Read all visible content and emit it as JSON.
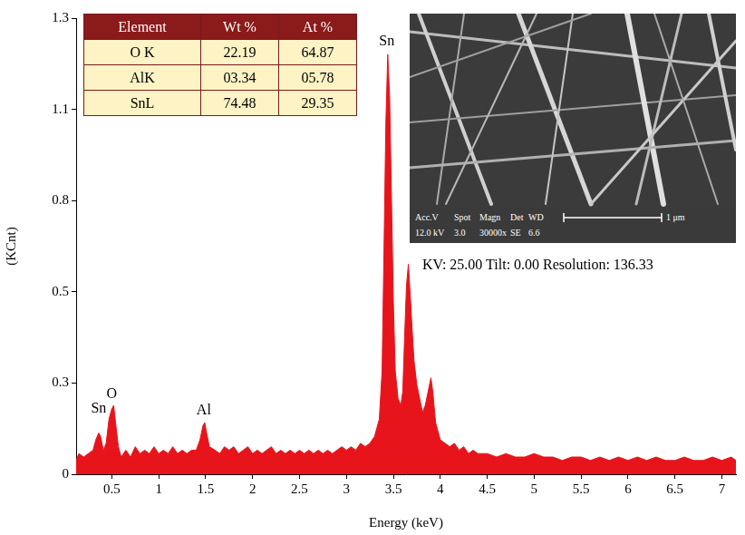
{
  "chart_data": {
    "type": "area",
    "x_label": "Energy (keV)",
    "y_label": "(KCnt)",
    "color": "#e8141b",
    "grid": false,
    "xlim": [
      0.12,
      7.15
    ],
    "xticks": [
      0.5,
      1,
      1.5,
      2,
      2.5,
      3,
      3.5,
      4,
      4.5,
      5,
      5.5,
      6,
      6.5,
      7
    ],
    "ylim": [
      0,
      1.325
    ],
    "yticks": [
      0,
      {
        "value": 0.265,
        "label": "0.3"
      },
      {
        "value": 0.53,
        "label": "0.5"
      },
      {
        "value": 0.795,
        "label": "0.8"
      },
      {
        "value": 1.06,
        "label": "1.1"
      },
      {
        "value": 1.325,
        "label": "1.3"
      }
    ],
    "x": [
      0.12,
      0.15,
      0.2,
      0.25,
      0.3,
      0.33,
      0.36,
      0.38,
      0.41,
      0.44,
      0.47,
      0.5,
      0.52,
      0.54,
      0.57,
      0.6,
      0.65,
      0.7,
      0.75,
      0.8,
      0.85,
      0.9,
      0.95,
      1.0,
      1.05,
      1.1,
      1.15,
      1.2,
      1.25,
      1.3,
      1.35,
      1.4,
      1.44,
      1.47,
      1.49,
      1.51,
      1.54,
      1.6,
      1.65,
      1.7,
      1.75,
      1.8,
      1.85,
      1.9,
      1.95,
      2.0,
      2.05,
      2.1,
      2.15,
      2.2,
      2.25,
      2.3,
      2.35,
      2.4,
      2.45,
      2.5,
      2.55,
      2.6,
      2.65,
      2.7,
      2.75,
      2.8,
      2.85,
      2.9,
      2.95,
      3.0,
      3.05,
      3.1,
      3.15,
      3.2,
      3.25,
      3.3,
      3.35,
      3.38,
      3.4,
      3.42,
      3.44,
      3.46,
      3.48,
      3.5,
      3.52,
      3.55,
      3.58,
      3.6,
      3.62,
      3.64,
      3.66,
      3.68,
      3.7,
      3.72,
      3.75,
      3.78,
      3.81,
      3.84,
      3.87,
      3.9,
      3.92,
      3.95,
      4.0,
      4.05,
      4.1,
      4.15,
      4.2,
      4.25,
      4.3,
      4.35,
      4.4,
      4.5,
      4.6,
      4.7,
      4.8,
      4.9,
      5.0,
      5.1,
      5.2,
      5.3,
      5.4,
      5.5,
      5.6,
      5.7,
      5.8,
      5.9,
      6.0,
      6.1,
      6.2,
      6.3,
      6.4,
      6.5,
      6.6,
      6.7,
      6.8,
      6.9,
      7.0,
      7.1,
      7.15
    ],
    "values": [
      0.04,
      0.06,
      0.05,
      0.06,
      0.07,
      0.1,
      0.12,
      0.11,
      0.07,
      0.09,
      0.16,
      0.19,
      0.2,
      0.15,
      0.08,
      0.05,
      0.07,
      0.05,
      0.08,
      0.06,
      0.07,
      0.06,
      0.08,
      0.06,
      0.07,
      0.06,
      0.08,
      0.06,
      0.07,
      0.06,
      0.07,
      0.07,
      0.1,
      0.14,
      0.15,
      0.12,
      0.08,
      0.07,
      0.06,
      0.08,
      0.07,
      0.08,
      0.06,
      0.07,
      0.08,
      0.06,
      0.07,
      0.06,
      0.07,
      0.08,
      0.06,
      0.07,
      0.06,
      0.07,
      0.06,
      0.07,
      0.06,
      0.07,
      0.06,
      0.07,
      0.06,
      0.07,
      0.06,
      0.07,
      0.08,
      0.07,
      0.08,
      0.07,
      0.09,
      0.08,
      0.09,
      0.11,
      0.16,
      0.3,
      0.65,
      1.02,
      1.22,
      1.1,
      0.8,
      0.5,
      0.3,
      0.22,
      0.2,
      0.24,
      0.4,
      0.55,
      0.61,
      0.52,
      0.42,
      0.33,
      0.26,
      0.22,
      0.18,
      0.2,
      0.24,
      0.28,
      0.24,
      0.15,
      0.1,
      0.09,
      0.08,
      0.09,
      0.07,
      0.08,
      0.06,
      0.07,
      0.06,
      0.06,
      0.05,
      0.06,
      0.05,
      0.05,
      0.06,
      0.05,
      0.05,
      0.04,
      0.05,
      0.05,
      0.04,
      0.05,
      0.04,
      0.05,
      0.04,
      0.05,
      0.04,
      0.05,
      0.04,
      0.04,
      0.05,
      0.04,
      0.04,
      0.05,
      0.04,
      0.05,
      0.04
    ],
    "annotations": [
      {
        "text": "Sn",
        "x": 0.36,
        "y": 0.17
      },
      {
        "text": "O",
        "x": 0.5,
        "y": 0.21
      },
      {
        "text": "Al",
        "x": 1.48,
        "y": 0.165
      },
      {
        "text": "Sn",
        "x": 3.43,
        "y": 1.235
      }
    ]
  },
  "table": {
    "header": [
      "Element",
      "Wt %",
      "At %"
    ],
    "rows": [
      [
        "O K",
        "22.19",
        "64.87"
      ],
      [
        "AlK",
        "03.34",
        "05.78"
      ],
      [
        "SnL",
        "74.48",
        "29.35"
      ]
    ]
  },
  "inset": {
    "header": [
      "Acc.V",
      "Spot",
      "Magn",
      "Det",
      "WD"
    ],
    "values": [
      "12.0 kV",
      "3.0",
      "30000x",
      "SE",
      "6.6"
    ],
    "scale_bar": "1 μm",
    "caption": "KV: 25.00 Tilt: 0.00 Resolution: 136.33"
  }
}
